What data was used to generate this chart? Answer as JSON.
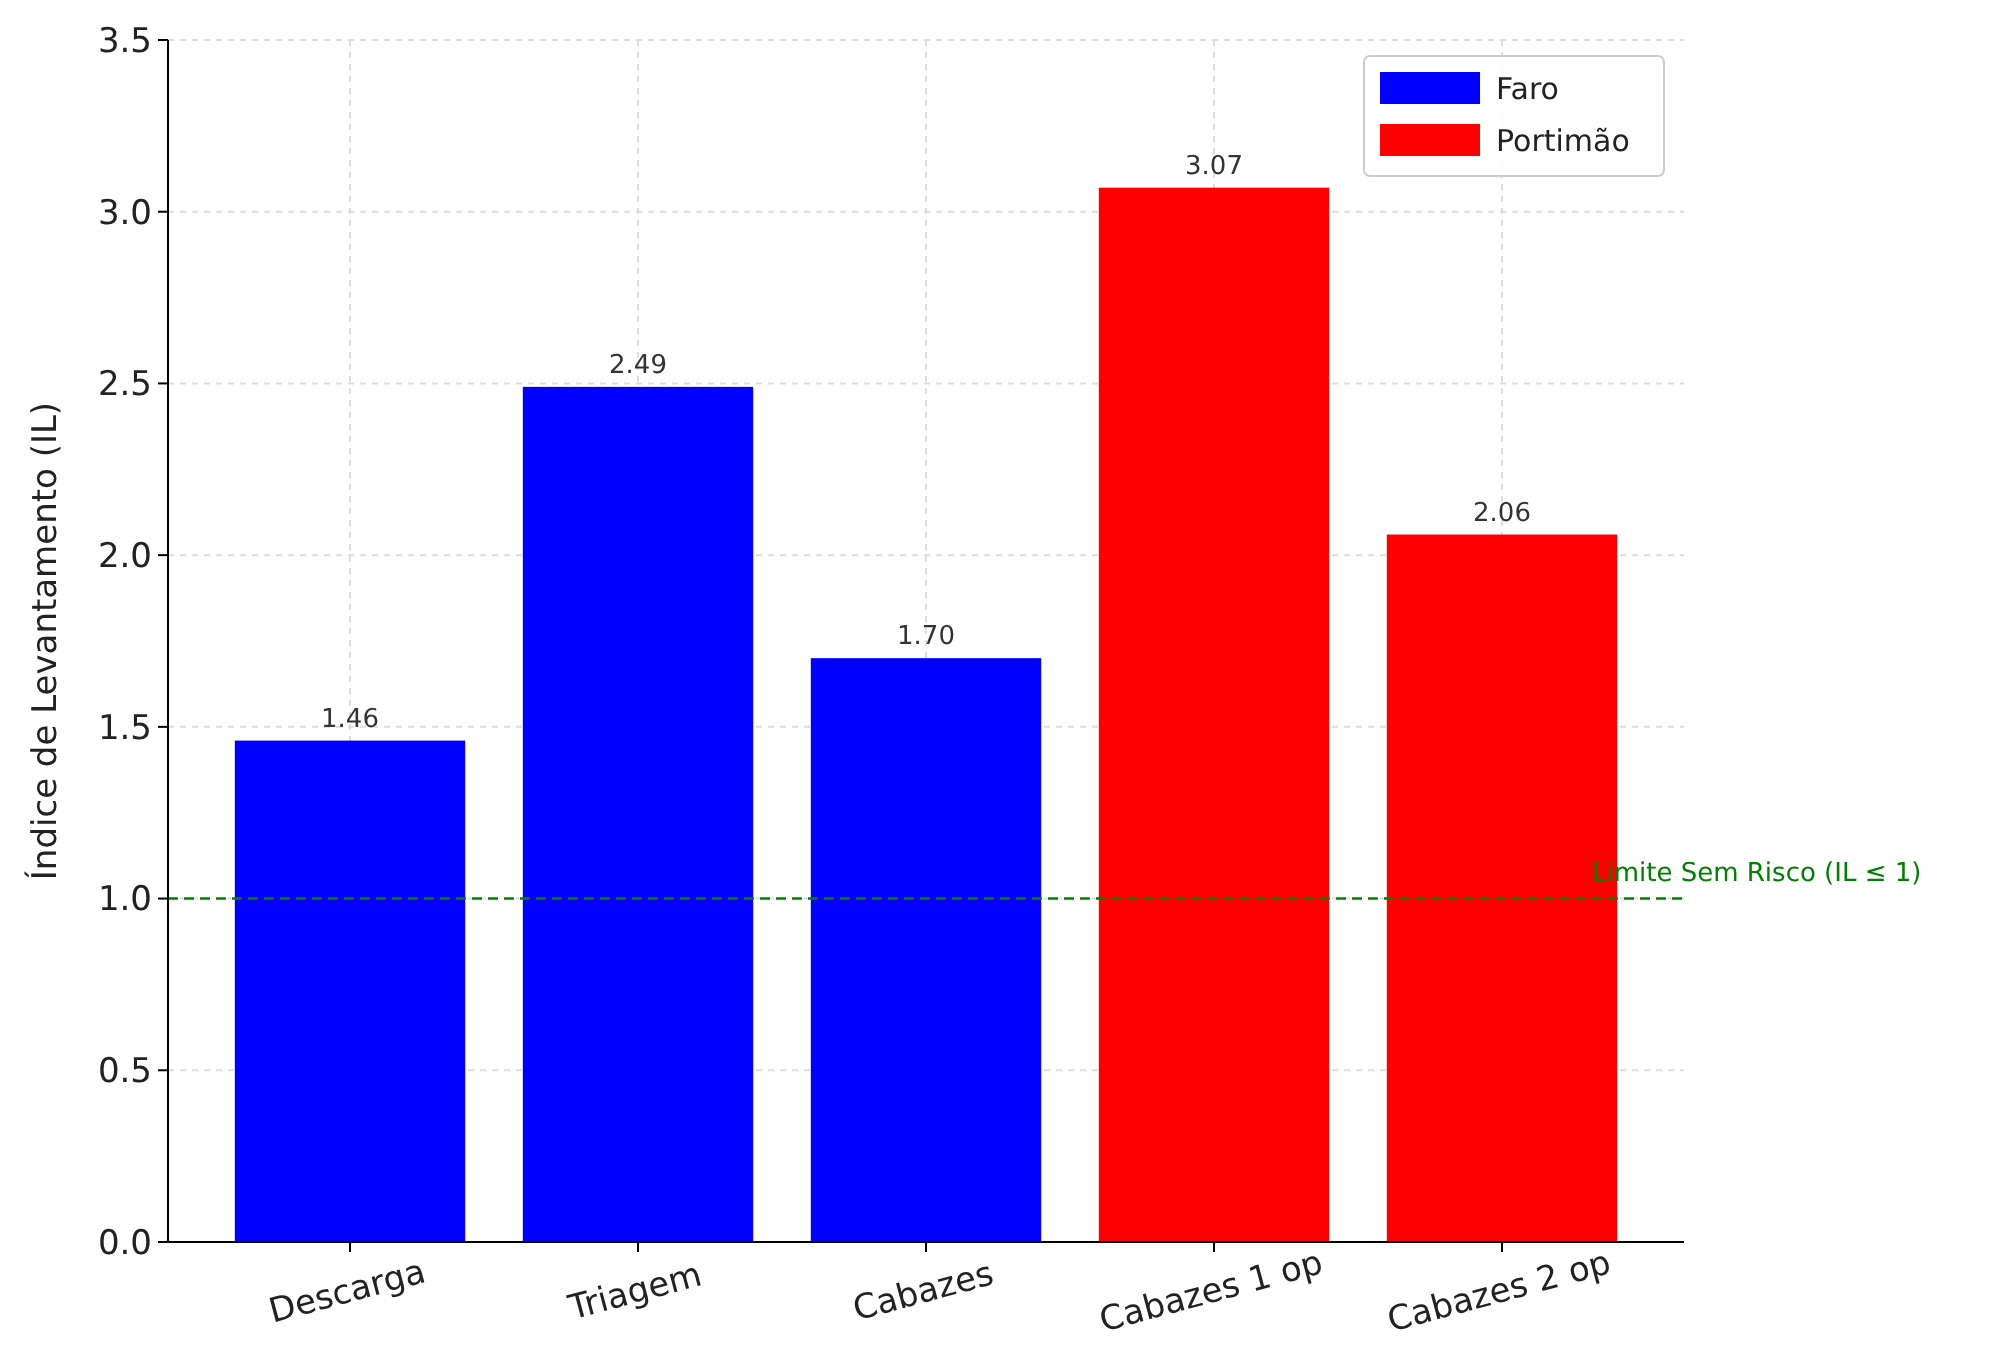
{
  "chart_data": {
    "type": "bar",
    "ylabel": "Índice de Levantamento (IL)",
    "categories": [
      "Descarga",
      "Triagem",
      "Cabazes",
      "Cabazes 1 op",
      "Cabazes 2 op"
    ],
    "series": [
      {
        "name": "Faro",
        "color": "#0000ff",
        "values": [
          1.46,
          2.49,
          1.7,
          null,
          null
        ],
        "value_labels": [
          "1.46",
          "2.49",
          "1.70",
          null,
          null
        ]
      },
      {
        "name": "Portimão",
        "color": "#ff0000",
        "values": [
          null,
          null,
          null,
          3.07,
          2.06
        ],
        "value_labels": [
          null,
          null,
          null,
          "3.07",
          "2.06"
        ]
      }
    ],
    "ylim": [
      0,
      3.5
    ],
    "yticks": [
      {
        "value": 0,
        "label": "0.0"
      },
      {
        "value": 0.5,
        "label": "0.5"
      },
      {
        "value": 1,
        "label": "1.0"
      },
      {
        "value": 1.5,
        "label": "1.5"
      },
      {
        "value": 2,
        "label": "2.0"
      },
      {
        "value": 2.5,
        "label": "2.5"
      },
      {
        "value": 3,
        "label": "3.0"
      },
      {
        "value": 3.5,
        "label": "3.5"
      }
    ],
    "grid": true,
    "legend": "top right",
    "ref_lines": [
      {
        "axis": "y",
        "value": 1,
        "label": "Limite Sem Risco (IL ≤ 1)",
        "color": "#008000",
        "line_style": "dashed"
      }
    ]
  }
}
